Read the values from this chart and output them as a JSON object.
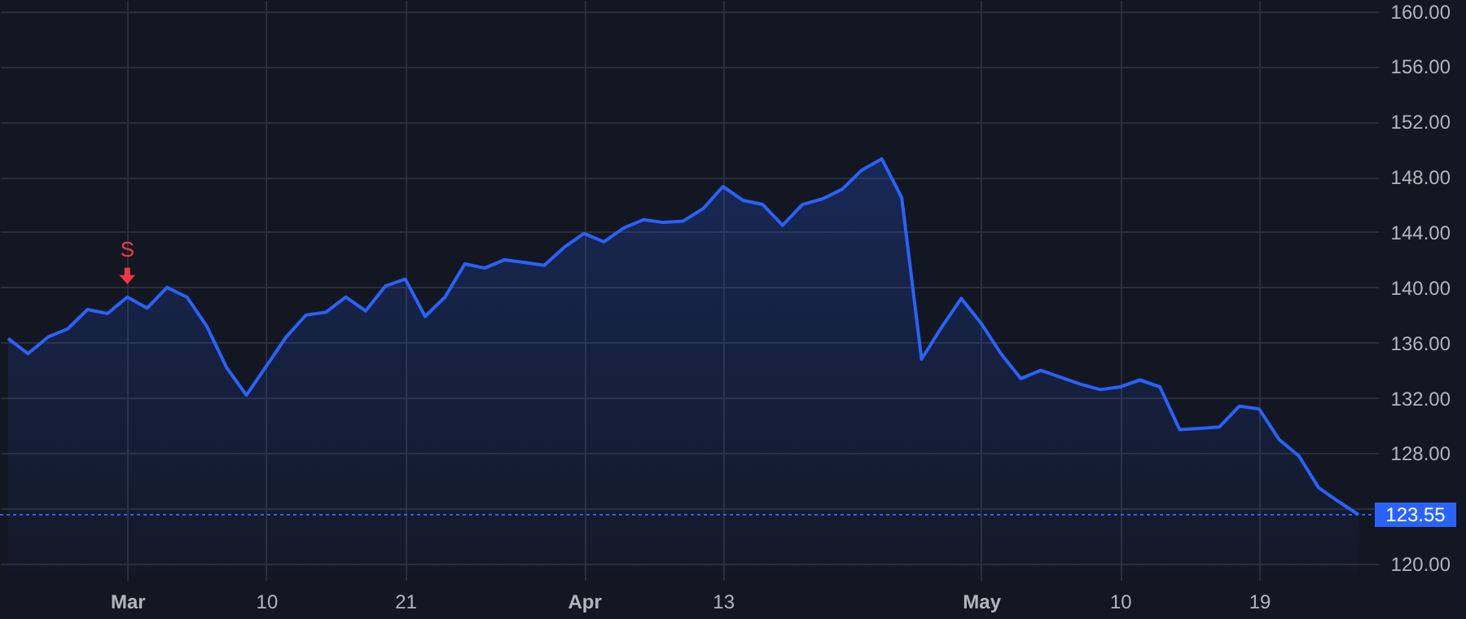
{
  "chart_data": {
    "type": "area",
    "categories": [
      null,
      null,
      null,
      null,
      null,
      null,
      "Mar",
      null,
      null,
      null,
      null,
      null,
      null,
      "10",
      null,
      null,
      null,
      null,
      null,
      null,
      "21",
      null,
      null,
      null,
      null,
      null,
      null,
      null,
      null,
      "Apr",
      null,
      null,
      null,
      null,
      null,
      null,
      "13",
      null,
      null,
      null,
      null,
      null,
      null,
      null,
      null,
      null,
      null,
      null,
      null,
      "May",
      null,
      null,
      null,
      null,
      null,
      null,
      "10",
      null,
      null,
      null,
      null,
      null,
      null,
      "19",
      null,
      null,
      null,
      null,
      null
    ],
    "series": [
      {
        "color": "#2962ff",
        "values": [
          136.3,
          135.2,
          136.4,
          137.0,
          138.4,
          138.1,
          139.3,
          138.5,
          140.0,
          139.3,
          137.2,
          134.2,
          132.2,
          134.3,
          136.4,
          138.0,
          138.2,
          139.3,
          138.3,
          140.1,
          140.6,
          137.9,
          139.3,
          141.7,
          141.4,
          142.0,
          141.8,
          141.6,
          142.9,
          143.9,
          143.3,
          144.3,
          144.9,
          144.7,
          144.8,
          145.7,
          147.3,
          146.3,
          146.0,
          144.5,
          146.0,
          146.4,
          147.1,
          148.5,
          149.3,
          146.5,
          134.8,
          137.1,
          139.2,
          137.4,
          135.2,
          133.4,
          134.0,
          133.5,
          133.0,
          132.6,
          132.8,
          133.3,
          132.8,
          129.7,
          129.8,
          129.9,
          131.4,
          131.2,
          129.0,
          127.8,
          125.5,
          124.5,
          123.55
        ]
      }
    ],
    "ylim": [
      119.3,
      160.8
    ],
    "yticks": [
      {
        "value": 120,
        "label": "120.00"
      },
      {
        "value": 124,
        "label": null
      },
      {
        "value": 128,
        "label": "128.00"
      },
      {
        "value": 132,
        "label": "132.00"
      },
      {
        "value": 136,
        "label": "136.00"
      },
      {
        "value": 140,
        "label": "140.00"
      },
      {
        "value": 144,
        "label": "144.00"
      },
      {
        "value": 148,
        "label": "148.00"
      },
      {
        "value": 152,
        "label": "152.00"
      },
      {
        "value": 156,
        "label": "156.00"
      },
      {
        "value": 160,
        "label": "160.00"
      }
    ],
    "grid": true,
    "ref_lines": [
      {
        "axis": "y",
        "value": 123.55,
        "label": "123.55",
        "color": "#2962ff",
        "line_style": "dotted"
      }
    ],
    "annotations": [
      {
        "text": "S",
        "x": "Mar",
        "y": 139.3
      }
    ]
  }
}
